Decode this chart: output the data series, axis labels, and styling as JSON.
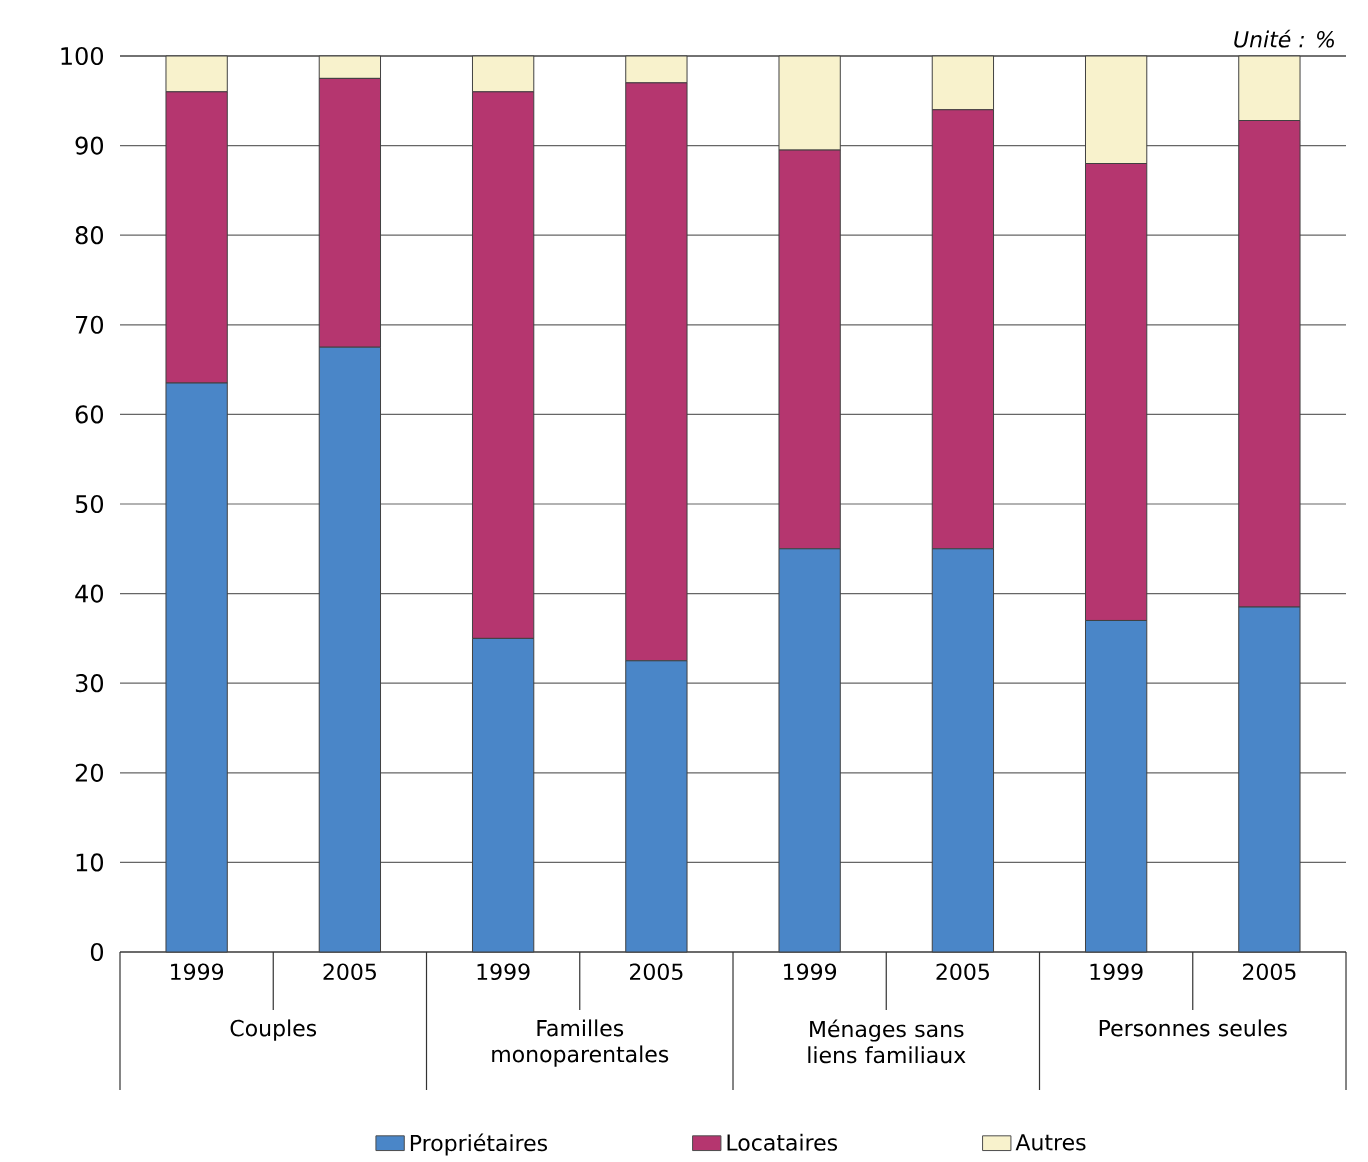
{
  "chart_data": {
    "type": "bar",
    "stacked": true,
    "categories": [
      "1999",
      "2005",
      "1999",
      "2005",
      "1999",
      "2005",
      "1999",
      "2005"
    ],
    "series": [
      {
        "name": "Propriétaires",
        "color": "#4a86c8",
        "values": [
          63.5,
          67.5,
          35,
          32.5,
          45,
          45,
          37,
          38.5
        ]
      },
      {
        "name": "Locataires",
        "color": "#b5366f",
        "values": [
          32.5,
          30,
          61,
          64.5,
          44.5,
          49,
          51,
          54.3
        ]
      },
      {
        "name": "Autres",
        "color": "#f8f2cc",
        "values": [
          4,
          2.5,
          4,
          3,
          10.5,
          6,
          12,
          7.2
        ]
      }
    ],
    "ylim": [
      0,
      100
    ],
    "yticks": [
      0,
      10,
      20,
      30,
      40,
      50,
      60,
      70,
      80,
      90,
      100
    ],
    "grid": "y",
    "legend": "bottom",
    "annotations": [
      "Couples",
      "Familles monoparentales",
      "Ménages sans liens familiaux",
      "Personnes seules",
      "*Unité : %*"
    ]
  }
}
